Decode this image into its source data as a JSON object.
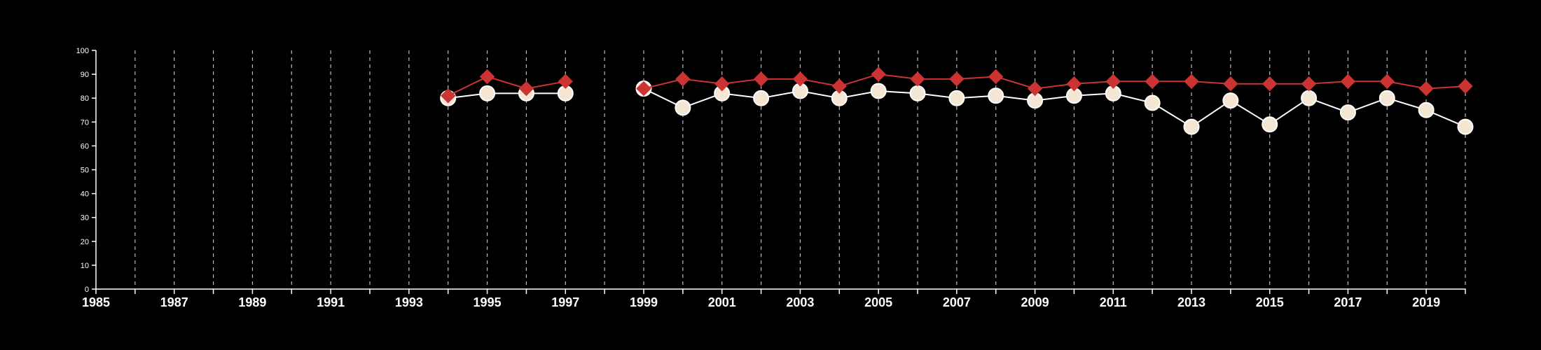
{
  "chart_data": {
    "type": "line",
    "title": "",
    "xlabel": "",
    "ylabel": "",
    "xlim": [
      1985,
      2020
    ],
    "ylim": [
      0,
      100
    ],
    "y_ticks": [
      0,
      10,
      20,
      30,
      40,
      50,
      60,
      70,
      80,
      90,
      100
    ],
    "x_tick_labels": [
      1985,
      1987,
      1989,
      1991,
      1993,
      1995,
      1997,
      1999,
      2001,
      2003,
      2005,
      2007,
      2009,
      2011,
      2013,
      2015,
      2017,
      2019
    ],
    "vertical_gridlines_yearly": true,
    "horizontal_grid": false,
    "legend": "none",
    "background_color": "#000000",
    "series": [
      {
        "color": "#cc3333",
        "marker": "diamond",
        "points": [
          [
            1994,
            81
          ],
          [
            1995,
            89
          ],
          [
            1996,
            84
          ],
          [
            1997,
            87
          ],
          [
            1999,
            84
          ],
          [
            2000,
            88
          ],
          [
            2001,
            86
          ],
          [
            2002,
            88
          ],
          [
            2003,
            88
          ],
          [
            2004,
            85
          ],
          [
            2005,
            90
          ],
          [
            2006,
            88
          ],
          [
            2007,
            88
          ],
          [
            2008,
            89
          ],
          [
            2009,
            84
          ],
          [
            2010,
            86
          ],
          [
            2011,
            87
          ],
          [
            2012,
            87
          ],
          [
            2013,
            87
          ],
          [
            2014,
            86
          ],
          [
            2015,
            86
          ],
          [
            2016,
            86
          ],
          [
            2017,
            87
          ],
          [
            2018,
            87
          ],
          [
            2019,
            84
          ],
          [
            2020,
            85
          ]
        ]
      },
      {
        "color": "#f5e6d3",
        "marker": "circle",
        "points": [
          [
            1994,
            80
          ],
          [
            1995,
            82
          ],
          [
            1996,
            82
          ],
          [
            1997,
            82
          ],
          [
            1999,
            84
          ],
          [
            2000,
            76
          ],
          [
            2001,
            82
          ],
          [
            2002,
            80
          ],
          [
            2003,
            83
          ],
          [
            2004,
            80
          ],
          [
            2005,
            83
          ],
          [
            2006,
            82
          ],
          [
            2007,
            80
          ],
          [
            2008,
            81
          ],
          [
            2009,
            79
          ],
          [
            2010,
            81
          ],
          [
            2011,
            82
          ],
          [
            2012,
            78
          ],
          [
            2013,
            68
          ],
          [
            2014,
            79
          ],
          [
            2015,
            69
          ],
          [
            2016,
            80
          ],
          [
            2017,
            74
          ],
          [
            2018,
            80
          ],
          [
            2019,
            75
          ],
          [
            2020,
            68
          ]
        ]
      }
    ]
  }
}
